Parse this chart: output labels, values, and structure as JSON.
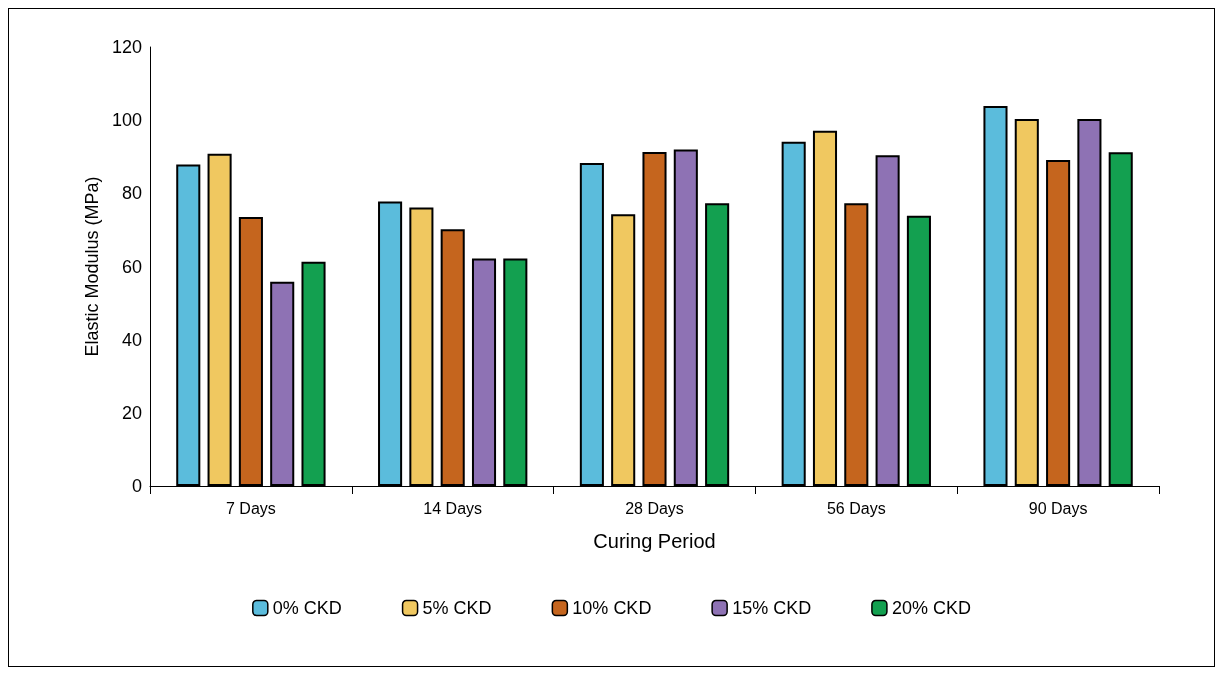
{
  "chart_data": {
    "type": "bar",
    "xlabel": "Curing Period",
    "ylabel": "Elastic Modulus (MPa)",
    "categories": [
      "7 Days",
      "14 Days",
      "28 Days",
      "56 Days",
      "90 Days"
    ],
    "series": [
      {
        "name": "0% CKD",
        "color": "#5bbcdc",
        "values": [
          87.9,
          77.8,
          88.3,
          94.1,
          103.9
        ]
      },
      {
        "name": "5% CKD",
        "color": "#f0c860",
        "values": [
          90.8,
          76.1,
          74.3,
          97.1,
          100.3
        ]
      },
      {
        "name": "10% CKD",
        "color": "#c5651e",
        "values": [
          73.5,
          70.2,
          91.3,
          77.3,
          89.1
        ]
      },
      {
        "name": "15% CKD",
        "color": "#8e72b4",
        "values": [
          55.8,
          62.2,
          92.0,
          90.4,
          100.3
        ]
      },
      {
        "name": "20% CKD",
        "color": "#13a050",
        "values": [
          61.3,
          62.2,
          77.3,
          73.9,
          91.2
        ]
      }
    ],
    "ylim": [
      0,
      120
    ],
    "yticks": [
      0,
      20,
      40,
      60,
      80,
      100,
      120
    ],
    "grid": false,
    "legend": "bottom"
  }
}
